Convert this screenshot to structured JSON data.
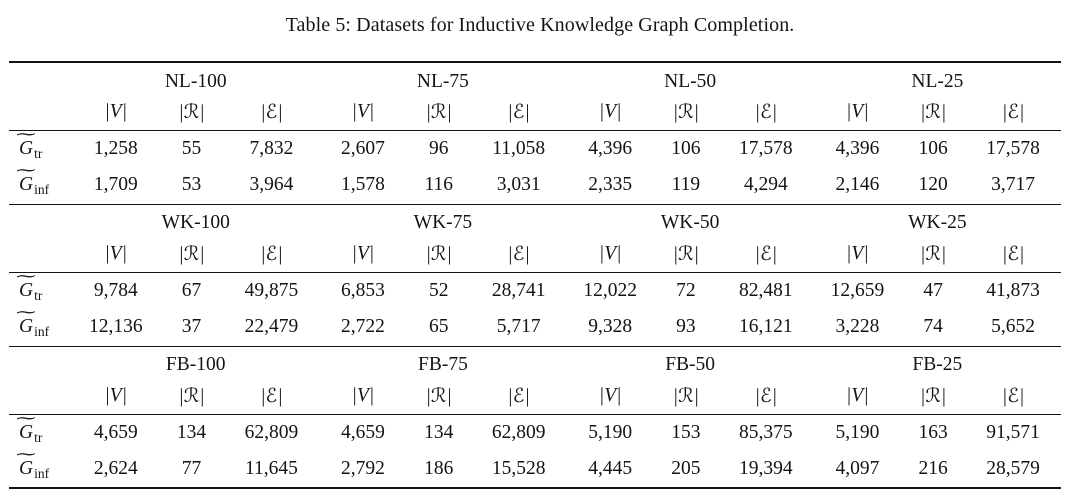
{
  "caption": "Table 5: Datasets for Inductive Knowledge Graph Completion.",
  "table": {
    "column_symbols": [
      "|V|",
      "|ℛ|",
      "|ℰ|"
    ],
    "row_labels": [
      {
        "accent": "∼",
        "base": "G",
        "subscript": "tr"
      },
      {
        "accent": "∼",
        "base": "G",
        "subscript": "inf"
      }
    ],
    "sections": [
      {
        "groups": [
          "NL-100",
          "NL-75",
          "NL-50",
          "NL-25"
        ],
        "rows": [
          {
            "values": [
              "1,258",
              "55",
              "7,832",
              "2,607",
              "96",
              "11,058",
              "4,396",
              "106",
              "17,578",
              "4,396",
              "106",
              "17,578"
            ]
          },
          {
            "values": [
              "1,709",
              "53",
              "3,964",
              "1,578",
              "116",
              "3,031",
              "2,335",
              "119",
              "4,294",
              "2,146",
              "120",
              "3,717"
            ]
          }
        ]
      },
      {
        "groups": [
          "WK-100",
          "WK-75",
          "WK-50",
          "WK-25"
        ],
        "rows": [
          {
            "values": [
              "9,784",
              "67",
              "49,875",
              "6,853",
              "52",
              "28,741",
              "12,022",
              "72",
              "82,481",
              "12,659",
              "47",
              "41,873"
            ]
          },
          {
            "values": [
              "12,136",
              "37",
              "22,479",
              "2,722",
              "65",
              "5,717",
              "9,328",
              "93",
              "16,121",
              "3,228",
              "74",
              "5,652"
            ]
          }
        ]
      },
      {
        "groups": [
          "FB-100",
          "FB-75",
          "FB-50",
          "FB-25"
        ],
        "rows": [
          {
            "values": [
              "4,659",
              "134",
              "62,809",
              "4,659",
              "134",
              "62,809",
              "5,190",
              "153",
              "85,375",
              "5,190",
              "163",
              "91,571"
            ]
          },
          {
            "values": [
              "2,624",
              "77",
              "11,645",
              "2,792",
              "186",
              "15,528",
              "4,445",
              "205",
              "19,394",
              "4,097",
              "216",
              "28,579"
            ]
          }
        ]
      }
    ]
  },
  "colors": {
    "text": "#141414",
    "rule": "#141414",
    "background": "#ffffff"
  }
}
